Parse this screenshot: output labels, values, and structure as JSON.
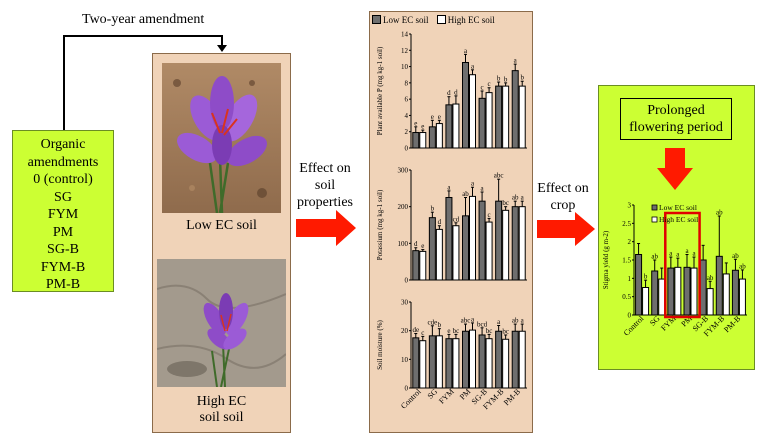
{
  "flow": {
    "top_label": "Two-year amendment",
    "effect_soil": [
      "Effect on",
      "soil",
      "properties"
    ],
    "effect_crop": [
      "Effect on",
      "crop"
    ]
  },
  "amendments": {
    "title": [
      "Organic",
      "amendments"
    ],
    "items": [
      "0 (control)",
      "SG",
      "FYM",
      "PM",
      "SG-B",
      "FYM-B",
      "PM-B"
    ]
  },
  "photos": {
    "low_caption": "Low EC soil",
    "high_caption": [
      "High EC",
      "soil soil"
    ]
  },
  "legend": {
    "low": "Low EC soil",
    "high": "High EC soil"
  },
  "outcome": {
    "prolonged": [
      "Prolonged",
      "flowering period"
    ]
  },
  "chart_data": [
    {
      "type": "bar",
      "ylabel": "Plant available P (mg kg-1 soil)",
      "ylim": [
        0,
        14
      ],
      "yticks": [
        0,
        2,
        4,
        6,
        8,
        10,
        12,
        14
      ],
      "categories": [
        "Control",
        "SG",
        "FYM",
        "PM",
        "SG-B",
        "FYM-B",
        "PM-B"
      ],
      "series": [
        {
          "name": "Low EC soil",
          "values": [
            1.9,
            2.6,
            5.3,
            10.5,
            6.1,
            7.6,
            9.5
          ],
          "errors": [
            0.7,
            0.8,
            1.0,
            1.0,
            0.9,
            0.5,
            0.8
          ],
          "labels": [
            "e",
            "e",
            "d",
            "a",
            "c",
            "b",
            "a"
          ]
        },
        {
          "name": "High EC soil",
          "values": [
            1.9,
            3.0,
            5.4,
            9.0,
            6.8,
            7.6,
            7.6
          ],
          "errors": [
            0.3,
            0.4,
            1.0,
            0.6,
            0.6,
            0.4,
            0.6
          ],
          "labels": [
            "e",
            "e",
            "d",
            "a",
            "c",
            "b",
            "b"
          ]
        }
      ]
    },
    {
      "type": "bar",
      "ylabel": "Potassium (mg kg-1 soil)",
      "ylim": [
        0,
        300
      ],
      "yticks": [
        0,
        100,
        200,
        300
      ],
      "categories": [
        "Control",
        "SG",
        "FYM",
        "PM",
        "SG-B",
        "FYM-B",
        "PM-B"
      ],
      "series": [
        {
          "name": "Low EC soil",
          "values": [
            80,
            170,
            225,
            175,
            215,
            215,
            200
          ],
          "errors": [
            8,
            15,
            18,
            50,
            25,
            60,
            15
          ],
          "labels": [
            "d",
            "b",
            "a",
            "ab",
            "a",
            "abc",
            "ab"
          ]
        },
        {
          "name": "High EC soil",
          "values": [
            78,
            138,
            148,
            228,
            158,
            190,
            200
          ],
          "errors": [
            5,
            10,
            8,
            25,
            10,
            10,
            15
          ],
          "labels": [
            "e",
            "d",
            "cd",
            "a",
            "c",
            "bc",
            "a"
          ]
        }
      ]
    },
    {
      "type": "bar",
      "ylabel": "Soil moisture (%)",
      "ylim": [
        0,
        30
      ],
      "yticks": [
        0,
        10,
        20,
        30
      ],
      "categories": [
        "Control",
        "SG",
        "FYM",
        "PM",
        "SG-B",
        "FYM-B",
        "PM-B"
      ],
      "series": [
        {
          "name": "Low EC soil",
          "values": [
            17.5,
            18.2,
            17.2,
            19.8,
            18.5,
            19.8,
            19.8
          ],
          "errors": [
            1.5,
            3.5,
            1.5,
            2.5,
            2.5,
            2.0,
            2.5
          ],
          "labels": [
            "de",
            "cde",
            "e",
            "abc",
            "bcd",
            "a",
            "ab"
          ]
        },
        {
          "name": "High EC soil",
          "values": [
            16.5,
            18.2,
            17.2,
            20.2,
            17.2,
            17.0,
            19.8
          ],
          "errors": [
            1.5,
            2.5,
            1.5,
            2.5,
            1.5,
            1.5,
            2.5
          ],
          "labels": [
            "c",
            "b",
            "bc",
            "a",
            "bc",
            "bc",
            "a"
          ]
        }
      ]
    },
    {
      "type": "bar",
      "ylabel": "Stigma yield (g m-2)",
      "ylim": [
        0,
        3
      ],
      "yticks": [
        0,
        0.5,
        1,
        1.5,
        2,
        2.5,
        3
      ],
      "categories": [
        "Control",
        "SG",
        "FYM",
        "PM",
        "SG-B",
        "FYM-B",
        "PM-B"
      ],
      "series": [
        {
          "name": "Low EC soil",
          "values": [
            1.65,
            1.2,
            1.28,
            1.3,
            1.5,
            1.6,
            1.22
          ],
          "errors": [
            0.3,
            0.3,
            0.3,
            0.35,
            0.4,
            1.1,
            0.3
          ],
          "labels": [
            "",
            "ab",
            "a",
            "a",
            "",
            "ab",
            "ab"
          ]
        },
        {
          "name": "High EC soil",
          "values": [
            0.75,
            0.98,
            1.3,
            1.28,
            0.72,
            1.12,
            0.98
          ],
          "errors": [
            0.2,
            0.3,
            0.25,
            0.3,
            0.2,
            0.3,
            0.25
          ],
          "labels": [
            "b",
            "",
            "a",
            "a",
            "ab",
            "",
            "ab"
          ]
        }
      ]
    }
  ]
}
